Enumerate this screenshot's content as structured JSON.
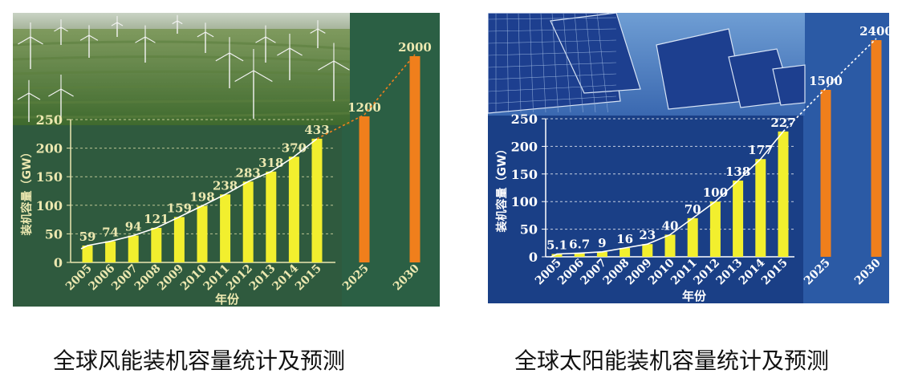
{
  "colors": {
    "wind_background": "#2f5a3e",
    "wind_forecast_band": "#2b5f44",
    "solar_background": "#1a3f86",
    "solar_forecast_band": "#2b5aa5",
    "historical_bar": "#f2ef2e",
    "forecast_bar": "#f07f1c",
    "wind_text": "#ece8b0",
    "solar_text": "#ffffff"
  },
  "captions": {
    "wind": "全球风能装机容量统计及预测",
    "solar": "全球太阳能装机容量统计及预测"
  },
  "chart_data": [
    {
      "type": "bar",
      "panel": "wind",
      "title": "全球风能装机容量统计及预测",
      "xlabel": "年份",
      "ylabel": "装机容量（GW）",
      "ylim": [
        0,
        250
      ],
      "yticks": [
        "0",
        "50",
        "100",
        "150",
        "200",
        "250"
      ],
      "categories": [
        "2005",
        "2006",
        "2007",
        "2008",
        "2009",
        "2010",
        "2011",
        "2012",
        "2013",
        "2014",
        "2015"
      ],
      "values": [
        59,
        74,
        94,
        121,
        159,
        198,
        238,
        283,
        318,
        370,
        433
      ],
      "value_labels": [
        "59",
        "74",
        "94",
        "121",
        "159",
        "198",
        "238",
        "283",
        "318",
        "370",
        "433"
      ],
      "forecast": {
        "categories": [
          "2025",
          "2030"
        ],
        "values": [
          1200,
          2000
        ],
        "value_labels": [
          "1200",
          "2000"
        ]
      },
      "trend_curve": true,
      "dotted_projection": true,
      "background_photo": "wind-farm",
      "grid": "dashed horizontal"
    },
    {
      "type": "bar",
      "panel": "solar",
      "title": "全球太阳能装机容量统计及预测",
      "xlabel": "年份",
      "ylabel": "装机容量（GW）",
      "ylim": [
        0,
        250
      ],
      "yticks": [
        "0",
        "50",
        "100",
        "150",
        "200",
        "250"
      ],
      "categories": [
        "2005",
        "2006",
        "2007",
        "2008",
        "2009",
        "2010",
        "2011",
        "2012",
        "2013",
        "2014",
        "2015"
      ],
      "values": [
        5.1,
        6.7,
        9,
        16,
        23,
        40,
        70,
        100,
        138,
        177,
        227
      ],
      "value_labels": [
        "5.1",
        "6.7",
        "9",
        "16",
        "23",
        "40",
        "70",
        "100",
        "138",
        "177",
        "227"
      ],
      "forecast": {
        "categories": [
          "2025",
          "2030"
        ],
        "values": [
          1500,
          2400
        ],
        "value_labels": [
          "1500",
          "2400"
        ]
      },
      "trend_curve": true,
      "dotted_projection": true,
      "background_photo": "solar-panels",
      "grid": "dashed horizontal"
    }
  ]
}
